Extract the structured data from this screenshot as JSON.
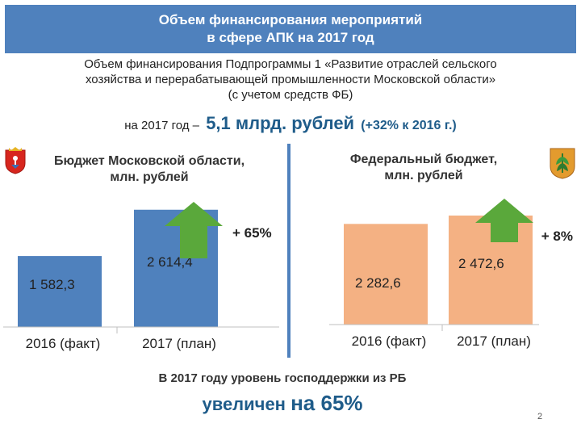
{
  "header": {
    "line1": "Объем финансирования мероприятий",
    "line2": "в сфере АПК на 2017 год"
  },
  "intro": {
    "line1": "Объем финансирования Подпрограммы 1 «Развитие отраслей сельского",
    "line2": "хозяйства и перерабатывающей промышленности Московской области»",
    "line3": "(с учетом средств ФБ)"
  },
  "total": {
    "prefix": "на 2017 год –",
    "amount": "5,1 млрд. рублей",
    "growth": "(+32% к 2016 г.)"
  },
  "icons": {
    "left": "moscow-oblast-crest-icon",
    "right": "agriculture-emblem-icon"
  },
  "colors": {
    "header": "#4f81bd",
    "regional_bar": "#4f81bd",
    "federal_bar": "#f4b183",
    "arrow": "#5aa83b",
    "accent_text": "#1f5c8a"
  },
  "chart_data": [
    {
      "type": "bar",
      "title_line1": "Бюджет Московской области,",
      "title_line2": "млн. рублей",
      "categories": [
        "2016 (факт)",
        "2017 (план)"
      ],
      "values": [
        1582.3,
        2614.4
      ],
      "value_labels": [
        "1 582,3",
        "2 614,4"
      ],
      "change_label": "+ 65%",
      "color": "#4f81bd",
      "ylim": [
        0,
        2700
      ]
    },
    {
      "type": "bar",
      "title_line1": "Федеральный бюджет,",
      "title_line2": "млн. рублей",
      "categories": [
        "2016 (факт)",
        "2017 (план)"
      ],
      "values": [
        2282.6,
        2472.6
      ],
      "value_labels": [
        "2 282,6",
        "2 472,6"
      ],
      "change_label": "+ 8%",
      "color": "#f4b183",
      "ylim": [
        0,
        2600
      ]
    }
  ],
  "footer": {
    "line1": "В 2017 году уровень господдержки из РБ",
    "line2_text": "увеличен ",
    "line2_num": "на 65%"
  },
  "page_number": "2"
}
